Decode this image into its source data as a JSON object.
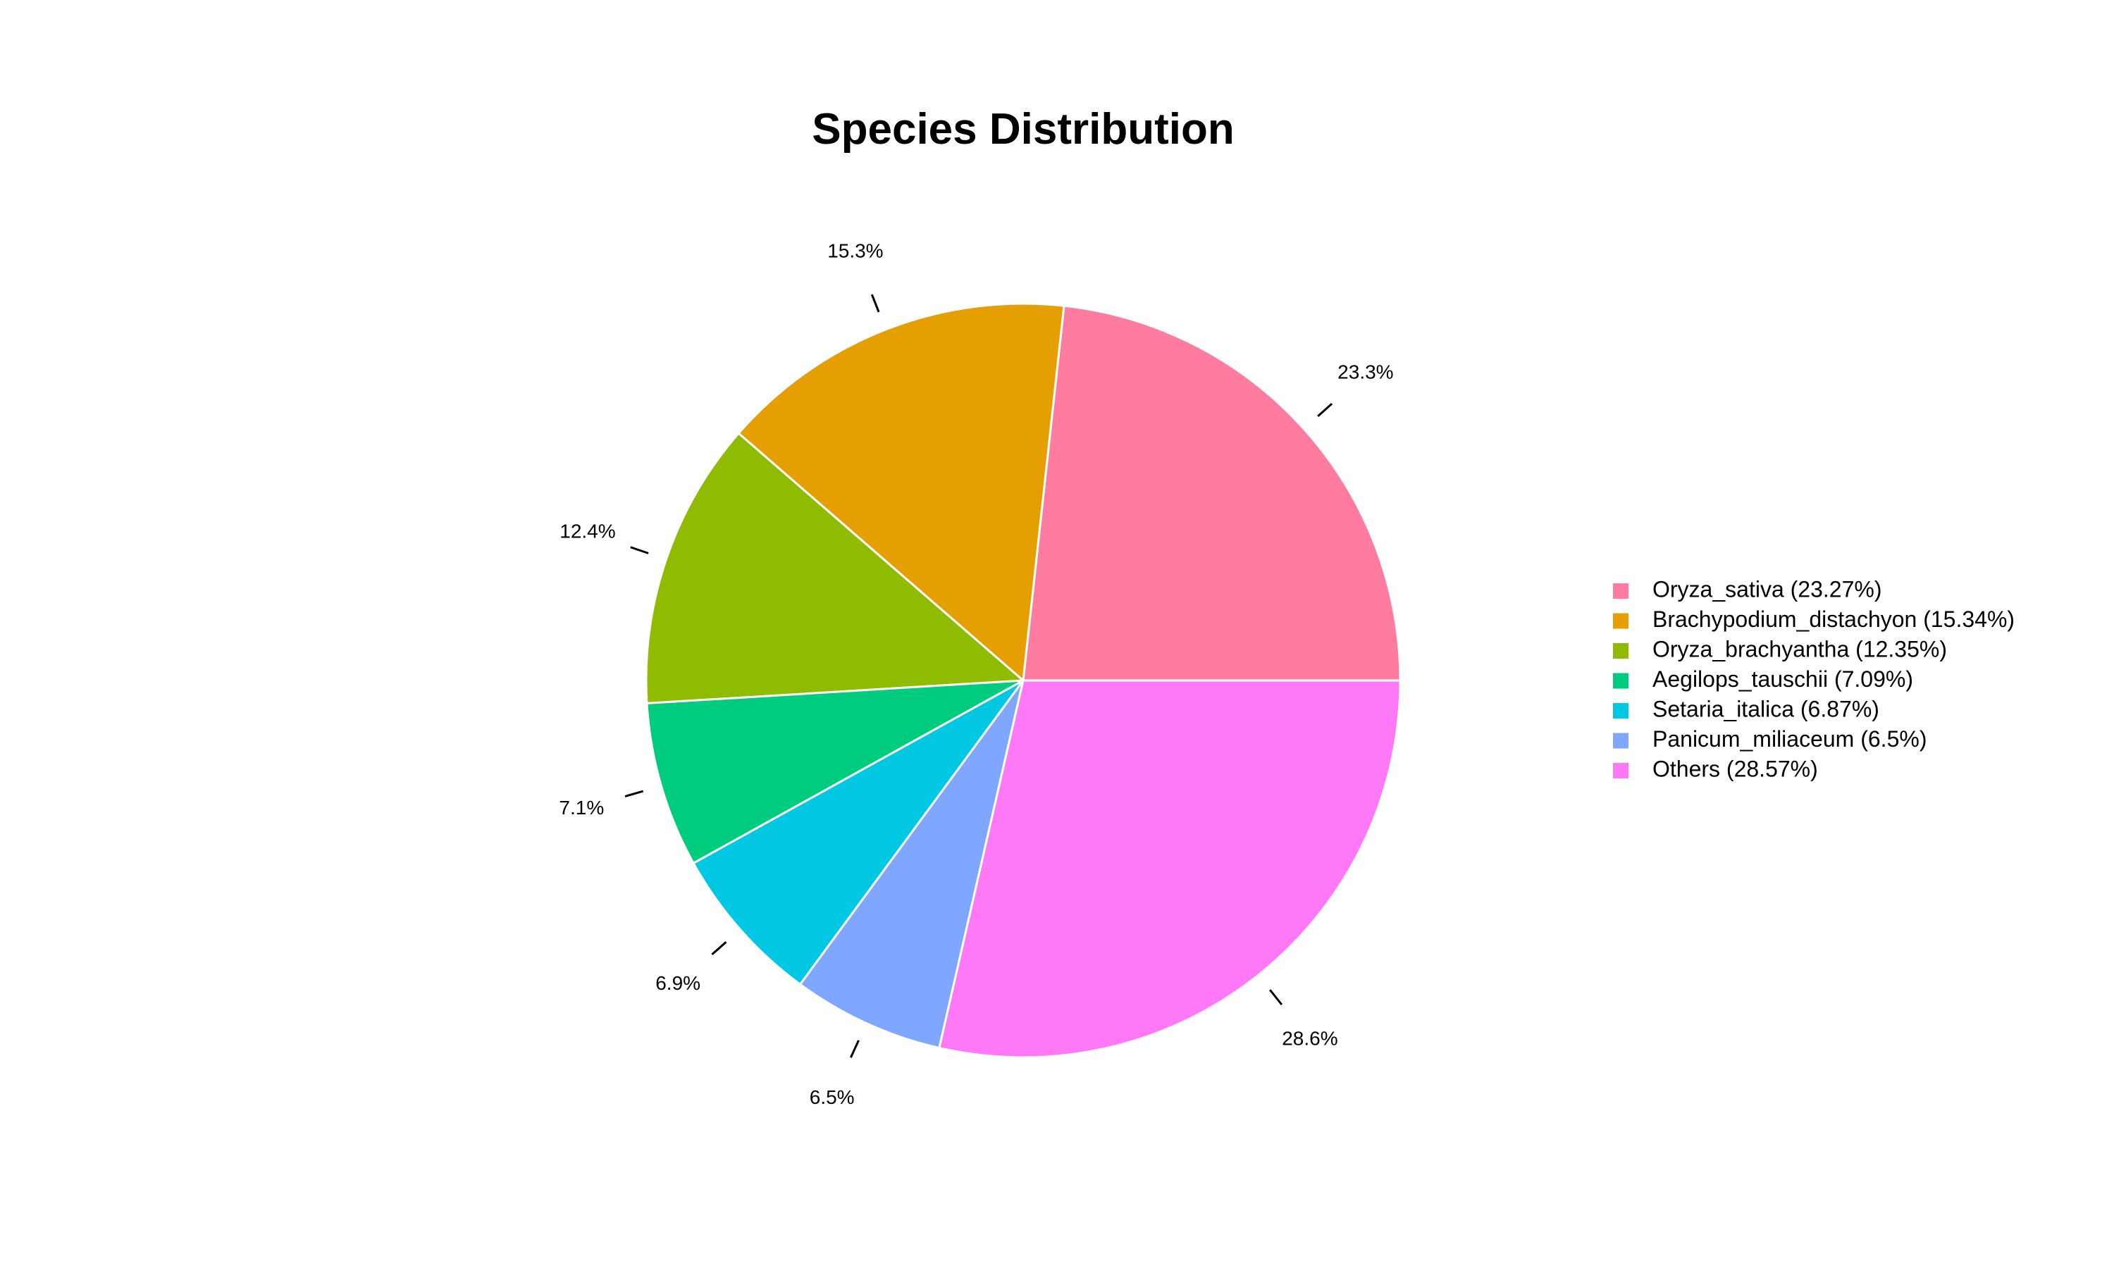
{
  "chart_data": {
    "type": "pie",
    "title": "Species Distribution",
    "start_angle_deg": 0,
    "direction": "counterclockwise",
    "legend_position": "right",
    "slices": [
      {
        "name": "Oryza_sativa",
        "value": 23.27,
        "label": "23.3%",
        "legend": "Oryza_sativa (23.27%)",
        "color": "#FF7B9F"
      },
      {
        "name": "Brachypodium_distachyon",
        "value": 15.34,
        "label": "15.3%",
        "legend": "Brachypodium_distachyon (15.34%)",
        "color": "#E69F00"
      },
      {
        "name": "Oryza_brachyantha",
        "value": 12.35,
        "label": "12.4%",
        "legend": "Oryza_brachyantha (12.35%)",
        "color": "#8FBB00"
      },
      {
        "name": "Aegilops_tauschii",
        "value": 7.09,
        "label": "7.1%",
        "legend": "Aegilops_tauschii (7.09%)",
        "color": "#00CC7F"
      },
      {
        "name": "Setaria_italica",
        "value": 6.87,
        "label": "6.9%",
        "legend": "Setaria_italica (6.87%)",
        "color": "#00C8E3"
      },
      {
        "name": "Panicum_miliaceum",
        "value": 6.5,
        "label": "6.5%",
        "legend": "Panicum_miliaceum (6.5%)",
        "color": "#7FA7FF"
      },
      {
        "name": "Others",
        "value": 28.57,
        "label": "28.6%",
        "legend": "Others (28.57%)",
        "color": "#FF79F6"
      }
    ]
  }
}
